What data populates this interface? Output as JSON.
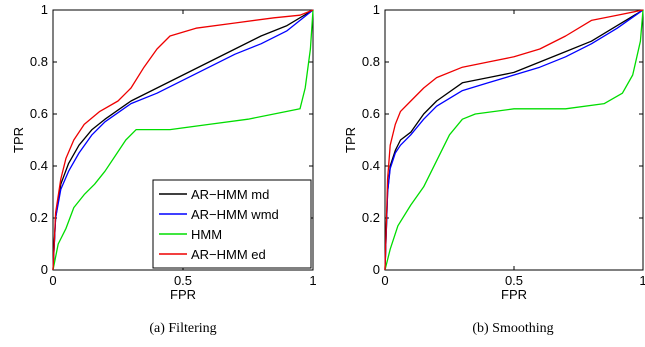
{
  "chart_data": [
    {
      "type": "line",
      "caption": "(a) Filtering",
      "xlabel": "FPR",
      "ylabel": "TPR",
      "xlim": [
        0,
        1
      ],
      "ylim": [
        0,
        1
      ],
      "xticks": [
        0,
        0.5,
        1
      ],
      "xtick_labels": [
        "0",
        "0.5",
        "1"
      ],
      "yticks": [
        0,
        0.2,
        0.4,
        0.6,
        0.8,
        1
      ],
      "ytick_labels": [
        "0",
        "0.2",
        "0.4",
        "0.6",
        "0.8",
        "1"
      ],
      "grid": false,
      "legend": "bottom-right",
      "series": [
        {
          "name": "AR−HMM md",
          "color": "#000000",
          "points": [
            [
              0,
              0
            ],
            [
              0.01,
              0.2
            ],
            [
              0.03,
              0.33
            ],
            [
              0.06,
              0.41
            ],
            [
              0.1,
              0.48
            ],
            [
              0.15,
              0.54
            ],
            [
              0.2,
              0.58
            ],
            [
              0.3,
              0.65
            ],
            [
              0.4,
              0.7
            ],
            [
              0.5,
              0.75
            ],
            [
              0.6,
              0.8
            ],
            [
              0.7,
              0.85
            ],
            [
              0.8,
              0.9
            ],
            [
              0.9,
              0.94
            ],
            [
              1,
              1
            ]
          ]
        },
        {
          "name": "AR−HMM wmd",
          "color": "#0000ff",
          "points": [
            [
              0,
              0
            ],
            [
              0.01,
              0.2
            ],
            [
              0.03,
              0.31
            ],
            [
              0.06,
              0.38
            ],
            [
              0.1,
              0.45
            ],
            [
              0.15,
              0.52
            ],
            [
              0.2,
              0.57
            ],
            [
              0.3,
              0.64
            ],
            [
              0.4,
              0.68
            ],
            [
              0.5,
              0.73
            ],
            [
              0.6,
              0.78
            ],
            [
              0.7,
              0.83
            ],
            [
              0.8,
              0.87
            ],
            [
              0.9,
              0.92
            ],
            [
              1,
              1
            ]
          ]
        },
        {
          "name": "HMM",
          "color": "#00dd00",
          "points": [
            [
              0,
              0
            ],
            [
              0.02,
              0.1
            ],
            [
              0.05,
              0.16
            ],
            [
              0.08,
              0.24
            ],
            [
              0.12,
              0.29
            ],
            [
              0.16,
              0.33
            ],
            [
              0.2,
              0.38
            ],
            [
              0.24,
              0.44
            ],
            [
              0.28,
              0.5
            ],
            [
              0.32,
              0.54
            ],
            [
              0.45,
              0.54
            ],
            [
              0.6,
              0.56
            ],
            [
              0.75,
              0.58
            ],
            [
              0.9,
              0.61
            ],
            [
              0.95,
              0.62
            ],
            [
              0.97,
              0.7
            ],
            [
              0.99,
              0.85
            ],
            [
              1,
              1
            ]
          ]
        },
        {
          "name": "AR−HMM ed",
          "color": "#ee0000",
          "points": [
            [
              0,
              0
            ],
            [
              0.01,
              0.22
            ],
            [
              0.03,
              0.35
            ],
            [
              0.05,
              0.43
            ],
            [
              0.08,
              0.5
            ],
            [
              0.12,
              0.56
            ],
            [
              0.18,
              0.61
            ],
            [
              0.25,
              0.65
            ],
            [
              0.3,
              0.7
            ],
            [
              0.35,
              0.78
            ],
            [
              0.4,
              0.85
            ],
            [
              0.45,
              0.9
            ],
            [
              0.55,
              0.93
            ],
            [
              0.7,
              0.95
            ],
            [
              0.85,
              0.97
            ],
            [
              0.95,
              0.98
            ],
            [
              1,
              1
            ]
          ]
        }
      ]
    },
    {
      "type": "line",
      "caption": "(b) Smoothing",
      "xlabel": "FPR",
      "ylabel": "TPR",
      "xlim": [
        0,
        1
      ],
      "ylim": [
        0,
        1
      ],
      "xticks": [
        0,
        0.5,
        1
      ],
      "xtick_labels": [
        "0",
        "0.5",
        "1"
      ],
      "yticks": [
        0,
        0.2,
        0.4,
        0.6,
        0.8,
        1
      ],
      "ytick_labels": [
        "0",
        "0.2",
        "0.4",
        "0.6",
        "0.8",
        "1"
      ],
      "grid": false,
      "legend": "none",
      "series": [
        {
          "name": "AR−HMM md",
          "color": "#000000",
          "points": [
            [
              0,
              0
            ],
            [
              0.01,
              0.3
            ],
            [
              0.02,
              0.4
            ],
            [
              0.04,
              0.46
            ],
            [
              0.06,
              0.5
            ],
            [
              0.1,
              0.53
            ],
            [
              0.15,
              0.6
            ],
            [
              0.2,
              0.65
            ],
            [
              0.3,
              0.72
            ],
            [
              0.4,
              0.74
            ],
            [
              0.5,
              0.76
            ],
            [
              0.6,
              0.8
            ],
            [
              0.7,
              0.84
            ],
            [
              0.8,
              0.88
            ],
            [
              0.9,
              0.94
            ],
            [
              1,
              1
            ]
          ]
        },
        {
          "name": "AR−HMM wmd",
          "color": "#0000ff",
          "points": [
            [
              0,
              0
            ],
            [
              0.01,
              0.3
            ],
            [
              0.02,
              0.39
            ],
            [
              0.04,
              0.45
            ],
            [
              0.06,
              0.48
            ],
            [
              0.1,
              0.52
            ],
            [
              0.15,
              0.58
            ],
            [
              0.2,
              0.63
            ],
            [
              0.3,
              0.69
            ],
            [
              0.4,
              0.72
            ],
            [
              0.5,
              0.75
            ],
            [
              0.6,
              0.78
            ],
            [
              0.7,
              0.82
            ],
            [
              0.8,
              0.87
            ],
            [
              0.9,
              0.93
            ],
            [
              1,
              1
            ]
          ]
        },
        {
          "name": "HMM",
          "color": "#00dd00",
          "points": [
            [
              0,
              0
            ],
            [
              0.02,
              0.08
            ],
            [
              0.05,
              0.17
            ],
            [
              0.1,
              0.25
            ],
            [
              0.15,
              0.32
            ],
            [
              0.2,
              0.42
            ],
            [
              0.25,
              0.52
            ],
            [
              0.3,
              0.58
            ],
            [
              0.35,
              0.6
            ],
            [
              0.5,
              0.62
            ],
            [
              0.7,
              0.62
            ],
            [
              0.85,
              0.64
            ],
            [
              0.92,
              0.68
            ],
            [
              0.96,
              0.75
            ],
            [
              0.99,
              0.88
            ],
            [
              1,
              1
            ]
          ]
        },
        {
          "name": "AR−HMM ed",
          "color": "#ee0000",
          "points": [
            [
              0,
              0
            ],
            [
              0.01,
              0.35
            ],
            [
              0.02,
              0.48
            ],
            [
              0.04,
              0.56
            ],
            [
              0.06,
              0.61
            ],
            [
              0.1,
              0.65
            ],
            [
              0.15,
              0.7
            ],
            [
              0.2,
              0.74
            ],
            [
              0.3,
              0.78
            ],
            [
              0.4,
              0.8
            ],
            [
              0.5,
              0.82
            ],
            [
              0.6,
              0.85
            ],
            [
              0.7,
              0.9
            ],
            [
              0.8,
              0.96
            ],
            [
              0.9,
              0.98
            ],
            [
              1,
              1
            ]
          ]
        }
      ]
    }
  ]
}
